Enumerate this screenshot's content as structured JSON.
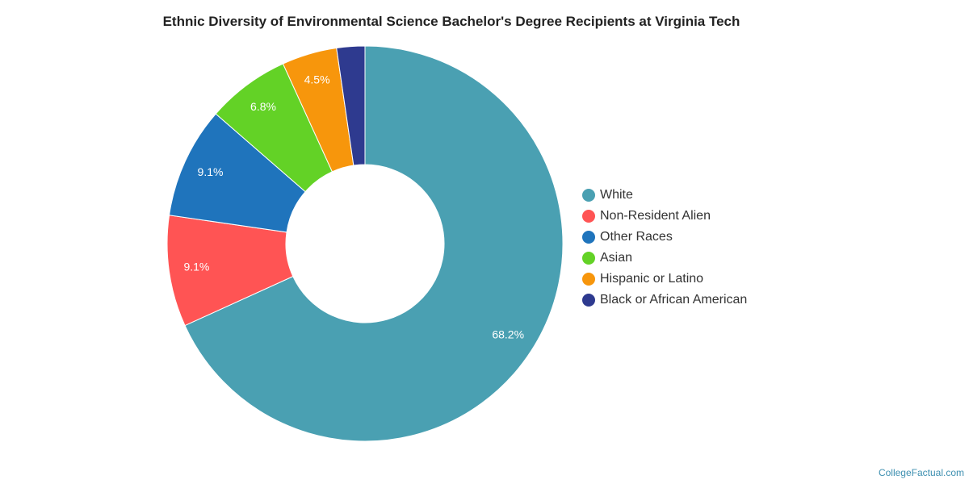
{
  "chart_data": {
    "type": "pie",
    "title": "Ethnic Diversity of Environmental Science Bachelor's Degree Recipients at Virginia Tech",
    "categories": [
      "White",
      "Non-Resident Alien",
      "Other Races",
      "Asian",
      "Hispanic or Latino",
      "Black or African American"
    ],
    "values": [
      68.2,
      9.1,
      9.1,
      6.8,
      4.5,
      2.3
    ],
    "data_labels": [
      "68.2%",
      "9.1%",
      "9.1%",
      "6.8%",
      "4.5%",
      ""
    ],
    "colors": [
      "#4aa0b2",
      "#ff5454",
      "#1f74bc",
      "#63d226",
      "#f7960c",
      "#2e3a8f"
    ],
    "donut": true,
    "legend_position": "right"
  },
  "credit": "CollegeFactual.com"
}
